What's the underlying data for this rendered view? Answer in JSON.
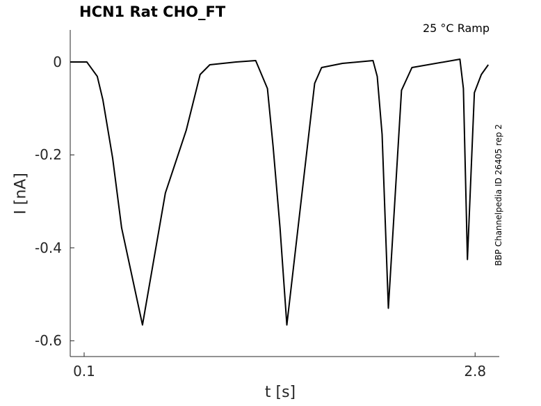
{
  "chart_data": {
    "type": "line",
    "title": "HCN1  Rat  CHO_FT",
    "annotation": "25 °C  Ramp",
    "side_label": "BBP Channelpedia ID 26405 rep 2",
    "xlabel": "t [s]",
    "ylabel": "I [nA]",
    "xlim": [
      0.004,
      2.967
    ],
    "ylim": [
      -0.634,
      0.069
    ],
    "xticks": [
      0.1,
      2.8
    ],
    "xtick_labels": [
      "0.1",
      "2.8"
    ],
    "yticks": [
      0,
      -0.2,
      -0.4,
      -0.6
    ],
    "ytick_labels": [
      "0",
      "-0.2",
      "-0.4",
      "-0.6"
    ],
    "grid": false,
    "series": [
      {
        "color": "#000000",
        "x": [
          0.004,
          0.119,
          0.191,
          0.229,
          0.297,
          0.359,
          0.503,
          0.661,
          0.805,
          0.901,
          0.968,
          1.15,
          1.285,
          1.366,
          1.405,
          1.453,
          1.5,
          1.692,
          1.74,
          1.884,
          2.095,
          2.124,
          2.158,
          2.201,
          2.292,
          2.364,
          2.695,
          2.719,
          2.747,
          2.795,
          2.843,
          2.891
        ],
        "y": [
          0,
          0,
          -0.031,
          -0.081,
          -0.207,
          -0.357,
          -0.566,
          -0.282,
          -0.147,
          -0.027,
          -0.006,
          0.0,
          0.003,
          -0.057,
          -0.181,
          -0.357,
          -0.566,
          -0.046,
          -0.012,
          -0.003,
          0.003,
          -0.031,
          -0.156,
          -0.53,
          -0.061,
          -0.012,
          0.006,
          -0.057,
          -0.425,
          -0.066,
          -0.027,
          -0.006
        ]
      }
    ]
  }
}
